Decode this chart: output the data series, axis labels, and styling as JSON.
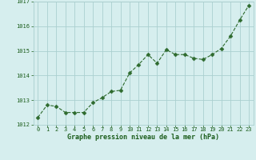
{
  "x": [
    0,
    1,
    2,
    3,
    4,
    5,
    6,
    7,
    8,
    9,
    10,
    11,
    12,
    13,
    14,
    15,
    16,
    17,
    18,
    19,
    20,
    21,
    22,
    23
  ],
  "y": [
    1012.3,
    1012.8,
    1012.75,
    1012.5,
    1012.5,
    1012.5,
    1012.9,
    1013.1,
    1013.35,
    1013.4,
    1014.1,
    1014.45,
    1014.85,
    1014.5,
    1015.05,
    1014.85,
    1014.85,
    1014.7,
    1014.65,
    1014.85,
    1015.1,
    1015.6,
    1016.25,
    1016.85
  ],
  "line_color": "#2d6a2d",
  "marker_color": "#2d6a2d",
  "bg_color": "#d6eeee",
  "grid_color": "#aacfcf",
  "xlabel": "Graphe pression niveau de la mer (hPa)",
  "xlabel_color": "#1a5c1a",
  "tick_color": "#1a5c1a",
  "ylim": [
    1012,
    1017
  ],
  "xlim": [
    -0.5,
    23.5
  ],
  "yticks": [
    1012,
    1013,
    1014,
    1015,
    1016,
    1017
  ],
  "xticks": [
    0,
    1,
    2,
    3,
    4,
    5,
    6,
    7,
    8,
    9,
    10,
    11,
    12,
    13,
    14,
    15,
    16,
    17,
    18,
    19,
    20,
    21,
    22,
    23
  ],
  "tick_fontsize": 5.0,
  "xlabel_fontsize": 6.0
}
